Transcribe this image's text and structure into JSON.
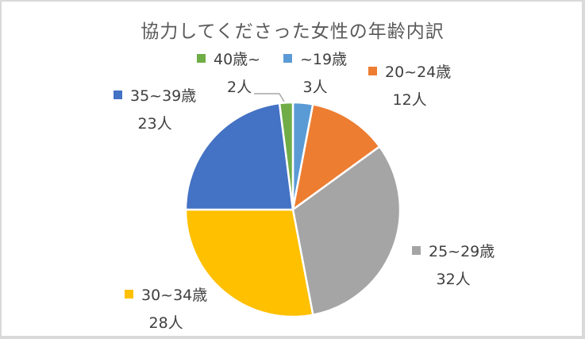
{
  "chart_data": {
    "type": "pie",
    "title": "協力してくださった女性の年齢内訳",
    "unit": "人",
    "start_angle_deg": 0,
    "direction": "clockwise",
    "slices": [
      {
        "category": "~19歳",
        "value": 3,
        "value_label": "3人",
        "color": "#5b9bd5"
      },
      {
        "category": "20~24歳",
        "value": 12,
        "value_label": "12人",
        "color": "#ed7d31"
      },
      {
        "category": "25~29歳",
        "value": 32,
        "value_label": "32人",
        "color": "#a5a5a5"
      },
      {
        "category": "30~34歳",
        "value": 28,
        "value_label": "28人",
        "color": "#ffc000"
      },
      {
        "category": "35~39歳",
        "value": 23,
        "value_label": "23人",
        "color": "#4472c4"
      },
      {
        "category": "40歳~",
        "value": 2,
        "value_label": "2人",
        "color": "#70ad47"
      }
    ],
    "legend": "inline data labels with color swatches",
    "total": 100
  }
}
